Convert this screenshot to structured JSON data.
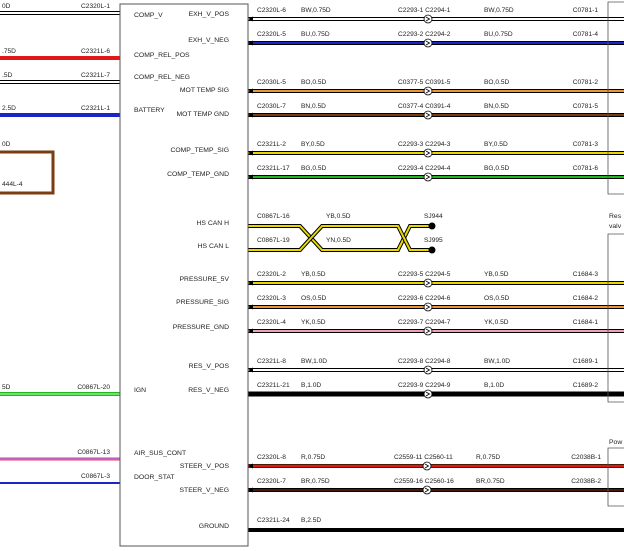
{
  "colors": {
    "brown": "#7a3d12",
    "red": "#e01818",
    "blue": "#1a24c8",
    "black": "#000000",
    "white": "#ffffff",
    "green": "#1fb81f",
    "yellow": "#e8d800",
    "orange": "#e89838",
    "pink": "#f0a0b8",
    "lightgreen": "#70e070",
    "violet": "#c060c0",
    "olive": "#b8b000",
    "darkbrown": "#4a1c08"
  },
  "left_wires": [
    {
      "id": "comp-v",
      "label": "0D",
      "connector": "C2320L-1",
      "color": "white",
      "stripe": "black"
    },
    {
      "id": "comp-rel-pos",
      "label": ".75D",
      "connector": "C2321L-6",
      "color": "red",
      "stripe": "red"
    },
    {
      "id": "comp-rel-neg",
      "label": ".5D",
      "connector": "C2321L-7",
      "color": "white",
      "stripe": "black"
    },
    {
      "id": "battery",
      "label": "2.5D",
      "connector": "C2321L-1",
      "color": "blue",
      "stripe": "blue"
    },
    {
      "id": "loop",
      "label": "0D",
      "connector": "444L-4",
      "color": "brown",
      "stripe": "brown"
    },
    {
      "id": "ign",
      "label": "5D",
      "connector": "C0867L-20",
      "color": "lightgreen",
      "stripe": "green"
    },
    {
      "id": "air-sus",
      "label": "",
      "connector": "C0867L-13",
      "color": "violet",
      "stripe": "pink"
    },
    {
      "id": "door-stat",
      "label": "",
      "connector": "C0867L-3",
      "color": "blue",
      "stripe": "white"
    }
  ],
  "ecu_left_labels": [
    "COMP_V",
    "COMP_REL_POS",
    "COMP_REL_NEG",
    "BATTERY",
    "IGN",
    "AIR_SUS_CONT",
    "DOOR_STAT"
  ],
  "ecu_right_labels": [
    "EXH_V_POS",
    "EXH_V_NEG",
    "MOT TEMP SIG",
    "MOT TEMP GND",
    "COMP_TEMP_SIG",
    "COMP_TEMP_GND",
    "HS CAN H",
    "HS CAN L",
    "PRESSURE_5V",
    "PRESSURE_SIG",
    "PRESSURE_GND",
    "RES_V_POS",
    "RES_V_NEG",
    "STEER_V_POS",
    "STEER_V_NEG",
    "GROUND"
  ],
  "right_wires": [
    {
      "id": "exh-v-pos",
      "c1": "C2320L-6",
      "w1": "BW,0.75D",
      "conn": "C2293-1 C2294-1",
      "w2": "BW,0.75D",
      "dest": "C0781-1",
      "color": "white",
      "stripe": "black"
    },
    {
      "id": "exh-v-neg",
      "c1": "C2320L-5",
      "w1": "BU,0.75D",
      "conn": "C2293-2 C2294-2",
      "w2": "BU,0.75D",
      "dest": "C0781-4",
      "color": "blue",
      "stripe": "black"
    },
    {
      "id": "mot-temp-sig",
      "c1": "C2030L-5",
      "w1": "BO,0.5D",
      "conn": "C0377-5 C0391-5",
      "w2": "BO,0.5D",
      "dest": "C0781-2",
      "color": "orange",
      "stripe": "black"
    },
    {
      "id": "mot-temp-gnd",
      "c1": "C2030L-7",
      "w1": "BN,0.5D",
      "conn": "C0377-4 C0391-4",
      "w2": "BN,0.5D",
      "dest": "C0781-5",
      "color": "brown",
      "stripe": "black"
    },
    {
      "id": "comp-temp-sig",
      "c1": "C2321L-2",
      "w1": "BY,0.5D",
      "conn": "C2293-3 C2294-3",
      "w2": "BY,0.5D",
      "dest": "C0781-3",
      "color": "yellow",
      "stripe": "black"
    },
    {
      "id": "comp-temp-gnd",
      "c1": "C2321L-17",
      "w1": "BG,0.5D",
      "conn": "C2293-4 C2294-4",
      "w2": "BG,0.5D",
      "dest": "C0781-6",
      "color": "green",
      "stripe": "black"
    },
    {
      "id": "pressure-5v",
      "c1": "C2320L-2",
      "w1": "YB,0.5D",
      "conn": "C2293-5 C2294-5",
      "w2": "YB,0.5D",
      "dest": "C1684-3",
      "color": "yellow",
      "stripe": "black"
    },
    {
      "id": "pressure-sig",
      "c1": "C2320L-3",
      "w1": "OS,0.5D",
      "conn": "C2293-6 C2294-6",
      "w2": "OS,0.5D",
      "dest": "C1684-2",
      "color": "orange",
      "stripe": "black"
    },
    {
      "id": "pressure-gnd",
      "c1": "C2320L-4",
      "w1": "YK,0.5D",
      "conn": "C2293-7 C2294-7",
      "w2": "YK,0.5D",
      "dest": "C1684-1",
      "color": "pink",
      "stripe": "black"
    },
    {
      "id": "res-v-pos",
      "c1": "C2321L-8",
      "w1": "BW,1.0D",
      "conn": "C2293-8 C2294-8",
      "w2": "BW,1.0D",
      "dest": "C1689-1",
      "color": "white",
      "stripe": "black"
    },
    {
      "id": "res-v-neg",
      "c1": "C2321L-21",
      "w1": "B,1.0D",
      "conn": "C2293-9 C2294-9",
      "w2": "B,1.0D",
      "dest": "C1689-2",
      "color": "black",
      "stripe": "black"
    },
    {
      "id": "steer-v-pos",
      "c1": "C2320L-8",
      "w1": "R,0.75D",
      "conn": "C2559-11 C2560-11",
      "w2": "R,0.75D",
      "dest": "C2038B-1",
      "color": "red",
      "stripe": "darkbrown"
    },
    {
      "id": "steer-v-neg",
      "c1": "C2320L-7",
      "w1": "BR,0.75D",
      "conn": "C2559-16 C2560-16",
      "w2": "BR,0.75D",
      "dest": "C2038B-2",
      "color": "darkbrown",
      "stripe": "black"
    },
    {
      "id": "ground",
      "c1": "C2321L-24",
      "w1": "B,2.5D",
      "conn": "",
      "w2": "",
      "dest": "",
      "color": "black",
      "stripe": "black"
    }
  ],
  "can": {
    "high": {
      "c1": "C0867L-16",
      "w": "YB,0.5D",
      "splice": "SJ944"
    },
    "low": {
      "c1": "C0867L-19",
      "w": "YN,0.5D",
      "splice": "SJ995"
    }
  },
  "right_edge_text": [
    "Res",
    "valv",
    "Pow"
  ]
}
